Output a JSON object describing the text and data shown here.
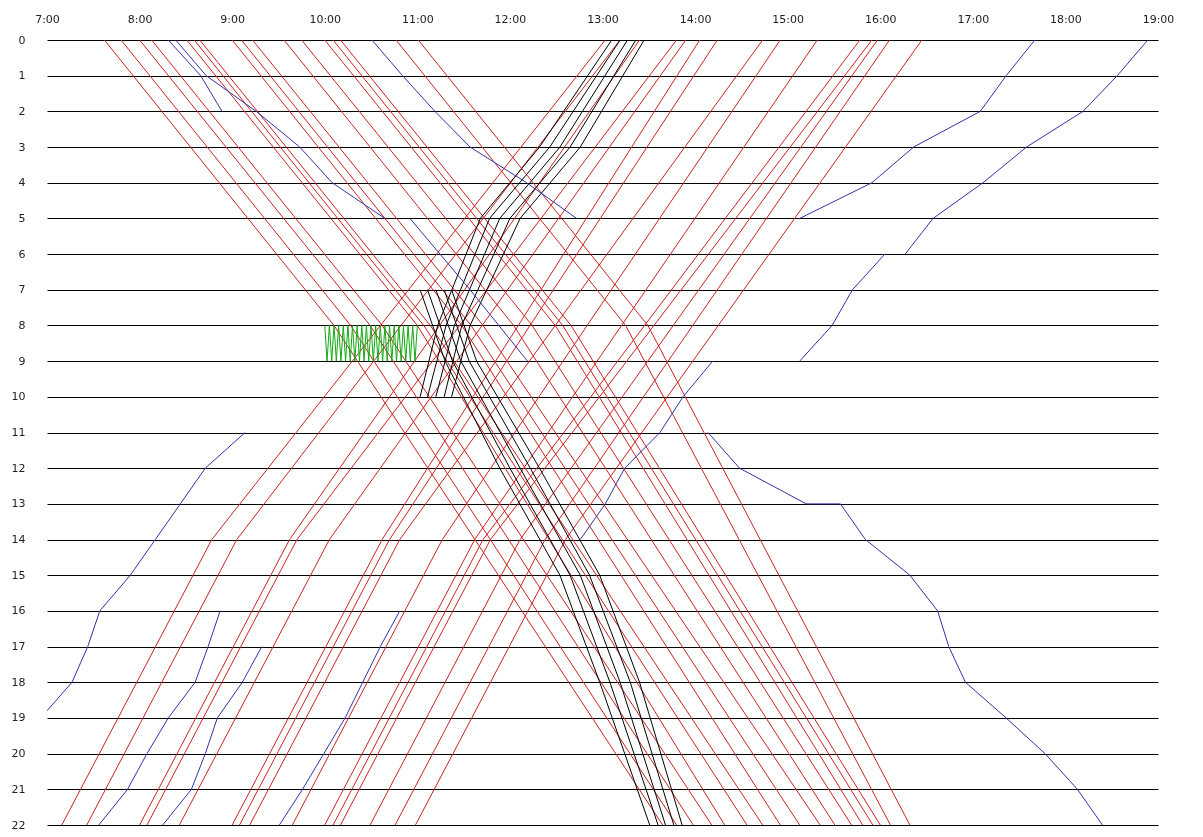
{
  "chart_data": {
    "type": "line",
    "xlim": [
      7,
      19
    ],
    "ylim": [
      22,
      0
    ],
    "grid": "y",
    "xticks": [
      {
        "value": 7,
        "label": "7:00"
      },
      {
        "value": 8,
        "label": "8:00"
      },
      {
        "value": 9,
        "label": "9:00"
      },
      {
        "value": 10,
        "label": "10:00"
      },
      {
        "value": 11,
        "label": "11:00"
      },
      {
        "value": 12,
        "label": "12:00"
      },
      {
        "value": 13,
        "label": "13:00"
      },
      {
        "value": 14,
        "label": "14:00"
      },
      {
        "value": 15,
        "label": "15:00"
      },
      {
        "value": 16,
        "label": "16:00"
      },
      {
        "value": 17,
        "label": "17:00"
      },
      {
        "value": 18,
        "label": "18:00"
      },
      {
        "value": 19,
        "label": "19:00"
      }
    ],
    "yticks": [
      0,
      1,
      2,
      3,
      4,
      5,
      6,
      7,
      8,
      9,
      10,
      11,
      12,
      13,
      14,
      15,
      16,
      17,
      18,
      19,
      20,
      21,
      22
    ],
    "series": [
      {
        "color": "#cc2222",
        "x": [
          7.62,
          10.1,
          13.65
        ],
        "values": [
          0,
          8,
          22
        ]
      },
      {
        "color": "#cc2222",
        "x": [
          7.8,
          10.28,
          13.8
        ],
        "values": [
          0,
          8,
          22
        ]
      },
      {
        "color": "#cc2222",
        "x": [
          8.0,
          10.49,
          13.98
        ],
        "values": [
          0,
          8,
          22
        ]
      },
      {
        "color": "#cc2222",
        "x": [
          8.13,
          10.62,
          14.18
        ],
        "values": [
          0,
          8,
          22
        ]
      },
      {
        "color": "#cc2222",
        "x": [
          8.51,
          11.0,
          14.32
        ],
        "values": [
          0,
          8,
          22
        ]
      },
      {
        "color": "#cc2222",
        "x": [
          8.59,
          11.07,
          14.56
        ],
        "values": [
          0,
          8,
          22
        ]
      },
      {
        "color": "#cc2222",
        "x": [
          8.65,
          11.14,
          14.73
        ],
        "values": [
          0,
          8,
          22
        ]
      },
      {
        "color": "#cc2222",
        "x": [
          9.0,
          11.48,
          14.92
        ],
        "values": [
          0,
          8,
          22
        ]
      },
      {
        "color": "#cc2222",
        "x": [
          9.1,
          11.58,
          15.13
        ],
        "values": [
          0,
          8,
          22
        ]
      },
      {
        "color": "#cc2222",
        "x": [
          9.22,
          11.71,
          15.35
        ],
        "values": [
          0,
          8,
          22
        ]
      },
      {
        "color": "#cc2222",
        "x": [
          9.56,
          12.04,
          15.51
        ],
        "values": [
          0,
          8,
          22
        ]
      },
      {
        "color": "#cc2222",
        "x": [
          9.75,
          12.24,
          15.69
        ],
        "values": [
          0,
          8,
          22
        ]
      },
      {
        "color": "#cc2222",
        "x": [
          10.0,
          12.49,
          15.81
        ],
        "values": [
          0,
          8,
          22
        ]
      },
      {
        "color": "#cc2222",
        "x": [
          10.09,
          12.57,
          15.92
        ],
        "values": [
          0,
          8,
          22
        ]
      },
      {
        "color": "#cc2222",
        "x": [
          10.17,
          12.66,
          16.0
        ],
        "values": [
          0,
          8,
          22
        ]
      },
      {
        "color": "#cc2222",
        "x": [
          10.77,
          13.25,
          16.11
        ],
        "values": [
          0,
          8,
          22
        ]
      },
      {
        "color": "#cc2222",
        "x": [
          11.01,
          13.49,
          16.32
        ],
        "values": [
          0,
          8,
          22
        ]
      },
      {
        "color": "#cc2222",
        "x": [
          7.16,
          8.78,
          13.03
        ],
        "values": [
          22,
          14,
          0
        ]
      },
      {
        "color": "#cc2222",
        "x": [
          7.43,
          9.05,
          13.19
        ],
        "values": [
          22,
          14,
          0
        ]
      },
      {
        "color": "#cc2222",
        "x": [
          8.0,
          9.62,
          13.4
        ],
        "values": [
          22,
          14,
          0
        ]
      },
      {
        "color": "#cc2222",
        "x": [
          8.08,
          9.7,
          13.8
        ],
        "values": [
          22,
          14,
          0
        ]
      },
      {
        "color": "#cc2222",
        "x": [
          8.43,
          10.05,
          13.9
        ],
        "values": [
          22,
          14,
          0
        ]
      },
      {
        "color": "#cc2222",
        "x": [
          9.0,
          10.62,
          14.05
        ],
        "values": [
          22,
          14,
          0
        ]
      },
      {
        "color": "#cc2222",
        "x": [
          9.08,
          10.7,
          14.24
        ],
        "values": [
          22,
          14,
          0
        ]
      },
      {
        "color": "#cc2222",
        "x": [
          9.19,
          10.81,
          14.73
        ],
        "values": [
          22,
          14,
          0
        ]
      },
      {
        "color": "#cc2222",
        "x": [
          9.65,
          11.27,
          14.92
        ],
        "values": [
          22,
          14,
          0
        ]
      },
      {
        "color": "#cc2222",
        "x": [
          10.0,
          11.62,
          15.32
        ],
        "values": [
          22,
          14,
          0
        ]
      },
      {
        "color": "#cc2222",
        "x": [
          10.09,
          11.71,
          15.78
        ],
        "values": [
          22,
          14,
          0
        ]
      },
      {
        "color": "#cc2222",
        "x": [
          10.17,
          11.79,
          15.91
        ],
        "values": [
          22,
          14,
          0
        ]
      },
      {
        "color": "#cc2222",
        "x": [
          10.49,
          12.11,
          15.97
        ],
        "values": [
          22,
          14,
          0
        ]
      },
      {
        "color": "#cc2222",
        "x": [
          10.76,
          12.38,
          16.1
        ],
        "values": [
          22,
          14,
          0
        ]
      },
      {
        "color": "#cc2222",
        "x": [
          10.98,
          12.6,
          16.45
        ],
        "values": [
          22,
          14,
          0
        ]
      },
      {
        "color": "#000000",
        "x": [
          11.03,
          11.22,
          11.68,
          12.32,
          13.1
        ],
        "values": [
          10,
          8,
          5,
          3,
          0
        ]
      },
      {
        "color": "#000000",
        "x": [
          11.11,
          11.31,
          11.78,
          12.43,
          13.19
        ],
        "values": [
          10,
          8,
          5,
          3,
          0
        ]
      },
      {
        "color": "#000000",
        "x": [
          11.2,
          11.4,
          11.89,
          12.54,
          13.27
        ],
        "values": [
          10,
          8,
          5,
          3,
          0
        ]
      },
      {
        "color": "#000000",
        "x": [
          11.29,
          11.48,
          12.0,
          12.65,
          13.36
        ],
        "values": [
          10,
          8,
          5,
          3,
          0
        ]
      },
      {
        "color": "#000000",
        "x": [
          11.37,
          11.57,
          12.11,
          12.76,
          13.45
        ],
        "values": [
          10,
          8,
          5,
          3,
          0
        ]
      },
      {
        "color": "#000000",
        "x": [
          11.03,
          11.3,
          11.89,
          12.54,
          12.97,
          13.51
        ],
        "values": [
          7,
          9,
          12,
          15,
          18,
          22
        ]
      },
      {
        "color": "#000000",
        "x": [
          11.11,
          11.38,
          12.0,
          12.65,
          13.08,
          13.6
        ],
        "values": [
          7,
          9,
          12,
          15,
          18,
          22
        ]
      },
      {
        "color": "#000000",
        "x": [
          11.2,
          11.47,
          12.11,
          12.76,
          13.19,
          13.68
        ],
        "values": [
          7,
          9,
          12,
          15,
          18,
          22
        ]
      },
      {
        "color": "#000000",
        "x": [
          11.29,
          11.56,
          12.22,
          12.86,
          13.3,
          13.77
        ],
        "values": [
          7,
          9,
          12,
          15,
          18,
          22
        ]
      },
      {
        "color": "#000000",
        "x": [
          11.37,
          11.64,
          12.32,
          12.97,
          13.4,
          13.86
        ],
        "values": [
          7,
          9,
          12,
          15,
          18,
          22
        ]
      },
      {
        "color": "#3333aa",
        "x": [
          8.31,
          8.66,
          8.89
        ],
        "values": [
          0,
          1,
          2
        ]
      },
      {
        "color": "#3333aa",
        "x": [
          8.39,
          8.72,
          9.26,
          9.73,
          10.08,
          10.65
        ],
        "values": [
          0,
          1,
          2,
          3,
          4,
          5
        ]
      },
      {
        "color": "#3333aa",
        "x": [
          10.51,
          10.84,
          11.19,
          11.57,
          12.18,
          12.72
        ],
        "values": [
          0,
          1,
          2,
          3,
          4,
          5
        ]
      },
      {
        "color": "#3333aa",
        "x": [
          10.92,
          11.57,
          12.19
        ],
        "values": [
          5,
          7,
          9
        ]
      },
      {
        "color": "#3333aa",
        "x": [
          15.13,
          15.91,
          16.36,
          17.08,
          17.36,
          17.67
        ],
        "values": [
          5,
          4,
          3,
          2,
          1,
          0
        ]
      },
      {
        "color": "#3333aa",
        "x": [
          16.27,
          16.57,
          17.11,
          17.58,
          18.19,
          18.56,
          18.89
        ],
        "values": [
          6,
          5,
          4,
          3,
          2,
          1,
          0
        ]
      },
      {
        "color": "#3333aa",
        "x": [
          15.13,
          15.48,
          15.7,
          16.05
        ],
        "values": [
          9,
          8,
          7,
          6
        ]
      },
      {
        "color": "#3333aa",
        "x": [
          12.76,
          13.03,
          13.24,
          13.62,
          13.87,
          14.19
        ],
        "values": [
          14,
          13,
          12,
          11,
          10,
          9
        ]
      },
      {
        "color": "#3333aa",
        "x": [
          14.14,
          14.48,
          15.2,
          15.57,
          15.84,
          16.32,
          16.62,
          16.74,
          16.92,
          17.36,
          17.78,
          18.13,
          18.4
        ],
        "values": [
          11,
          12,
          13,
          13,
          14,
          15,
          16,
          17,
          18,
          19,
          20,
          21,
          22
        ]
      },
      {
        "color": "#3333aa",
        "x": [
          7.0,
          7.27,
          7.44,
          7.57,
          7.9,
          8.17,
          8.44,
          8.71,
          9.14
        ],
        "values": [
          18.8,
          18,
          17,
          16,
          15,
          14,
          13,
          12,
          11
        ]
      },
      {
        "color": "#3333aa",
        "x": [
          7.56,
          7.87,
          8.08,
          8.31,
          8.6,
          8.74,
          8.87
        ],
        "values": [
          22,
          21,
          20,
          19,
          18,
          17,
          16
        ]
      },
      {
        "color": "#3333aa",
        "x": [
          8.25,
          8.56,
          8.71,
          8.84,
          9.11,
          9.32
        ],
        "values": [
          22,
          21,
          20,
          19,
          18,
          17
        ]
      },
      {
        "color": "#3333aa",
        "x": [
          9.51,
          9.76,
          10.22,
          10.6,
          10.81
        ],
        "values": [
          22,
          21,
          19,
          17,
          16
        ]
      },
      {
        "color": "#11aa11",
        "x": [
          10.0,
          10.025,
          10.05,
          10.075,
          10.1,
          10.125,
          10.15,
          10.175,
          10.2,
          10.225,
          10.25,
          10.275,
          10.3,
          10.325,
          10.35,
          10.375,
          10.4,
          10.425,
          10.45,
          10.475,
          10.5,
          10.525,
          10.55,
          10.575,
          10.6,
          10.625,
          10.65,
          10.675,
          10.7,
          10.725,
          10.75,
          10.775,
          10.8,
          10.825,
          10.85,
          10.875,
          10.9,
          10.925,
          10.95,
          10.975,
          11.0
        ],
        "values": [
          8,
          9,
          8,
          9,
          8,
          9,
          8,
          9,
          8,
          9,
          8,
          9,
          8,
          9,
          8,
          9,
          8,
          9,
          8,
          9,
          8,
          9,
          8,
          9,
          8,
          9,
          8,
          9,
          8,
          9,
          8,
          9,
          8,
          9,
          8,
          9,
          8,
          9,
          8,
          9,
          8
        ]
      }
    ]
  }
}
